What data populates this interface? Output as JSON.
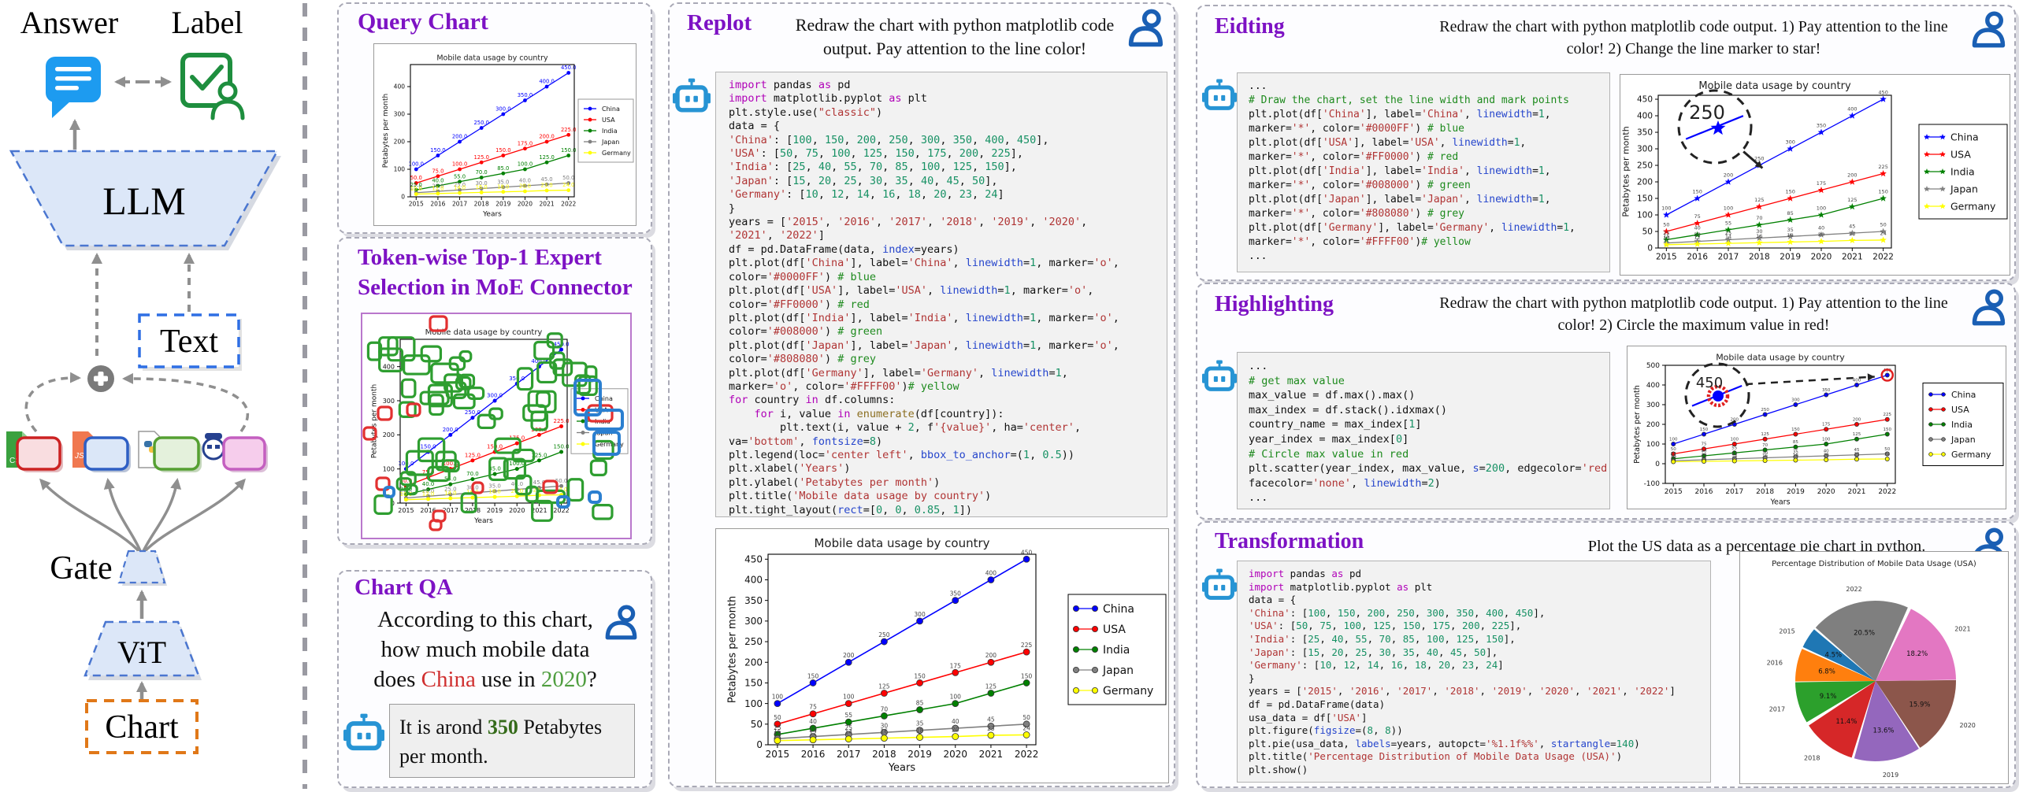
{
  "architecture": {
    "answer": "Answer",
    "label": "Label",
    "llm": "LLM",
    "text": "Text",
    "gate": "Gate",
    "vit": "ViT",
    "chart": "Chart",
    "expert_files": [
      "CSV",
      "JSO",
      "PY",
      "AI"
    ]
  },
  "panels": {
    "query_chart": {
      "title": "Query Chart"
    },
    "moe": {
      "title_line1": "Token-wise Top-1 Expert",
      "title_line2": "Selection in MoE Connector",
      "overlay_colors": {
        "green": "#2e9e30",
        "red": "#e23030",
        "blue": "#2b7fd0"
      }
    },
    "chart_qa": {
      "title": "Chart QA",
      "question_lines": [
        [
          {
            "t": "According to this chart,"
          }
        ],
        [
          {
            "t": "how much mobile data"
          }
        ],
        [
          {
            "t": "does "
          },
          {
            "t": "China",
            "c": "#d03030"
          },
          {
            "t": " use in "
          },
          {
            "t": "2020",
            "c": "#4f9e3f"
          },
          {
            "t": "?"
          }
        ]
      ],
      "answer_parts": [
        {
          "t": "It is arond "
        },
        {
          "t": "350",
          "c": "#356b1a",
          "b": true
        },
        {
          "t": " Petabytes per month."
        }
      ]
    },
    "replot": {
      "title": "Replot",
      "instruction": "Redraw the chart with python matplotlib code output. Pay attention to the line color!",
      "code": [
        "import pandas as pd",
        "import matplotlib.pyplot as plt",
        "plt.style.use(\"classic\")",
        "data = {",
        "'China': [100, 150, 200, 250, 300, 350, 400, 450],",
        "'USA': [50, 75, 100, 125, 150, 175, 200, 225],",
        "'India': [25, 40, 55, 70, 85, 100, 125, 150],",
        "'Japan': [15, 20, 25, 30, 35, 40, 45, 50],",
        "'Germany': [10, 12, 14, 16, 18, 20, 23, 24]",
        "}",
        "years = ['2015', '2016', '2017', '2018', '2019', '2020',",
        "'2021', '2022']",
        "df = pd.DataFrame(data, index=years)",
        "plt.plot(df['China'], label='China', linewidth=1, marker='o',",
        "color='#0000FF') # blue",
        "plt.plot(df['USA'], label='USA', linewidth=1, marker='o',",
        "color='#FF0000') # red",
        "plt.plot(df['India'], label='India', linewidth=1, marker='o',",
        "color='#008000') # green",
        "plt.plot(df['Japan'], label='Japan', linewidth=1, marker='o',",
        "color='#808080') # grey",
        "plt.plot(df['Germany'], label='Germany', linewidth=1,",
        "marker='o', color='#FFFF00')# yellow",
        "for country in df.columns:",
        "    for i, value in enumerate(df[country]):",
        "        plt.text(i, value + 2, f'{value}', ha='center',",
        "va='bottom', fontsize=8)",
        "plt.legend(loc='center left', bbox_to_anchor=(1, 0.5))",
        "plt.xlabel('Years')",
        "plt.ylabel('Petabytes per month')",
        "plt.title('Mobile data usage by country')",
        "plt.tight_layout(rect=[0, 0, 0.85, 1])",
        "plt.show()"
      ]
    },
    "editing": {
      "title": "Eidting",
      "instruction": "Redraw the chart with python matplotlib code output. 1) Pay attention to the line color! 2) Change the line marker to star!",
      "code": [
        "...",
        "# Draw the chart, set the line width and mark points",
        "plt.plot(df['China'], label='China', linewidth=1,",
        "marker='*', color='#0000FF') # blue",
        "plt.plot(df['USA'], label='USA', linewidth=1,",
        "marker='*', color='#FF0000') # red",
        "plt.plot(df['India'], label='India', linewidth=1,",
        "marker='*', color='#008000') # green",
        "plt.plot(df['Japan'], label='Japan', linewidth=1,",
        "marker='*', color='#808080') # grey",
        "plt.plot(df['Germany'], label='Germany', linewidth=1,",
        "marker='*', color='#FFFF00')# yellow",
        "..."
      ]
    },
    "highlighting": {
      "title": "Highlighting",
      "instruction": "Redraw the chart with python matplotlib code output.  1) Pay attention to the line color! 2) Circle the maximum value in red!",
      "code": [
        "...",
        "# get max value",
        "max_value = df.max().max()",
        "max_index = df.stack().idxmax()",
        "country_name = max_index[1]",
        "year_index = max_index[0]",
        "# Circle max value in red",
        "plt.scatter(year_index, max_value, s=200, edgecolor='red',",
        "facecolor='none', linewidth=2)",
        "..."
      ]
    },
    "transformation": {
      "title": "Transformation",
      "instruction": "Plot the US data as a percentage pie chart in python.",
      "code": [
        "import pandas as pd",
        "import matplotlib.pyplot as plt",
        "data = {",
        "'China': [100, 150, 200, 250, 300, 350, 400, 450],",
        "'USA': [50, 75, 100, 125, 150, 175, 200, 225],",
        "'India': [25, 40, 55, 70, 85, 100, 125, 150],",
        "'Japan': [15, 20, 25, 30, 35, 40, 45, 50],",
        "'Germany': [10, 12, 14, 16, 18, 20, 23, 24]",
        "}",
        "years = ['2015', '2016', '2017', '2018', '2019', '2020', '2021', '2022']",
        "df = pd.DataFrame(data)",
        "usa_data = df['USA']",
        "plt.figure(figsize=(8, 8))",
        "plt.pie(usa_data, labels=years, autopct='%1.1f%%', startangle=140)",
        "plt.title('Percentage Distribution of Mobile Data Usage (USA)')",
        "plt.show()"
      ]
    }
  },
  "chart_data": [
    {
      "id": "query",
      "type": "line",
      "title": "Mobile data usage by country",
      "xlabel": "Years",
      "ylabel": "Petabytes per month",
      "x": [
        "2015",
        "2016",
        "2017",
        "2018",
        "2019",
        "2020",
        "2021",
        "2022"
      ],
      "series": [
        {
          "name": "China",
          "color": "#0000FF",
          "values": [
            100,
            150,
            200,
            250,
            300,
            350,
            400,
            450
          ]
        },
        {
          "name": "USA",
          "color": "#FF0000",
          "values": [
            50,
            75,
            100,
            125,
            150,
            175,
            200,
            225
          ]
        },
        {
          "name": "India",
          "color": "#008000",
          "values": [
            25,
            40,
            55,
            70,
            85,
            100,
            125,
            150
          ]
        },
        {
          "name": "Japan",
          "color": "#808080",
          "values": [
            15,
            20,
            25,
            30,
            35,
            40,
            45,
            50
          ]
        },
        {
          "name": "Germany",
          "color": "#FFFF00",
          "values": [
            10,
            12,
            14,
            16,
            18,
            20,
            23,
            24
          ]
        }
      ],
      "ylim": [
        0,
        480
      ],
      "yticks": [
        0,
        100,
        200,
        300,
        400
      ],
      "legend": "outside right",
      "value_labels": "one-decimal"
    },
    {
      "id": "moe",
      "type": "line",
      "title": "Mobile data usage by country",
      "series_from": "query",
      "note": "same chart overlaid with token-wise top-1 expert selection boxes"
    },
    {
      "id": "replot",
      "type": "line",
      "title": "Mobile data usage by country",
      "xlabel": "Years",
      "ylabel": "Petabytes per month",
      "series_from": "query",
      "style": "classic",
      "ylim": [
        0,
        462
      ],
      "yticks": [
        0,
        50,
        100,
        150,
        200,
        250,
        300,
        350,
        400,
        450
      ],
      "value_labels": "integer"
    },
    {
      "id": "editing",
      "type": "line",
      "title": "Mobile data usage by country",
      "ylabel": "Petabytes per month",
      "series_from": "query",
      "marker": "star",
      "ylim": [
        0,
        462
      ],
      "yticks": [
        0,
        50,
        100,
        150,
        200,
        250,
        300,
        350,
        400,
        450
      ],
      "annotation": {
        "zoom_label": "250",
        "target_year": "2018",
        "target_value": 250
      }
    },
    {
      "id": "highlight",
      "type": "line",
      "title": "Mobile data usage by country",
      "xlabel": "Years",
      "ylabel": "Petabytes per month",
      "series_from": "query",
      "ylim": [
        -100,
        500
      ],
      "yticks": [
        -100,
        0,
        100,
        200,
        300,
        400,
        500
      ],
      "annotation": {
        "zoom_label": "450",
        "circle_color": "red",
        "target_year": "2022",
        "target_value": 450
      }
    },
    {
      "id": "pie",
      "type": "pie",
      "title": "Percentage Distribution of Mobile Data Usage (USA)",
      "labels": [
        "2015",
        "2016",
        "2017",
        "2018",
        "2019",
        "2020",
        "2021",
        "2022"
      ],
      "values": [
        50,
        75,
        100,
        125,
        150,
        175,
        200,
        225
      ],
      "pct_labels": [
        "4.5%",
        "6.8%",
        "9.1%",
        "11.4%",
        "13.6%",
        "15.9%",
        "18.2%",
        "20.5%"
      ],
      "colors": [
        "#1f77b4",
        "#ff7f0e",
        "#2ca02c",
        "#d62728",
        "#9467bd",
        "#8c564b",
        "#e377c2",
        "#7f7f7f"
      ],
      "startangle": 140
    }
  ]
}
